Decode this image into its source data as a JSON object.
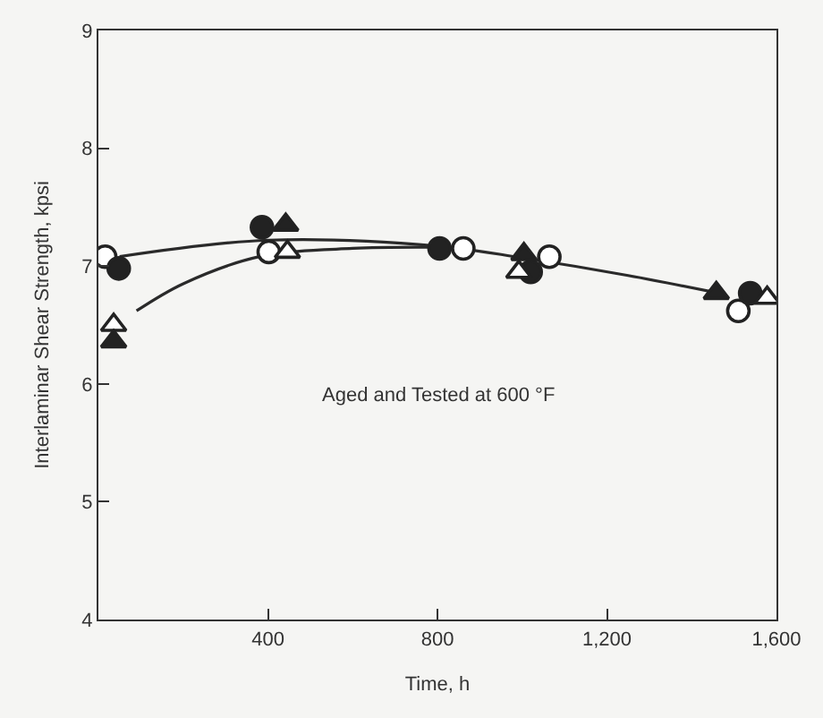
{
  "chart_data": {
    "type": "scatter",
    "xlabel": "Time, h",
    "ylabel": "Interlaminar Shear Strength, kpsi",
    "annotations": [
      "Aged and Tested at 600 °F"
    ],
    "xlim": [
      0,
      1600
    ],
    "xticks": [
      400,
      800,
      {
        "value": 1200,
        "label": "1,200"
      },
      {
        "value": 1600,
        "label": "1,600"
      }
    ],
    "ylim": [
      4,
      9
    ],
    "yticks": [
      4,
      5,
      6,
      7,
      8,
      9
    ],
    "series": [
      {
        "type": "line",
        "color": "#2a2a2a",
        "marker": "none",
        "x": [
          50,
          400,
          800,
          1000,
          1250,
          1450
        ],
        "values": [
          7.08,
          7.22,
          7.17,
          7.07,
          6.92,
          6.78
        ]
      },
      {
        "type": "line",
        "color": "#2a2a2a",
        "marker": "none",
        "x": [
          90,
          200,
          380,
          600,
          780
        ],
        "values": [
          6.62,
          6.85,
          7.08,
          7.15,
          7.16
        ]
      },
      {
        "color": "#ffffff",
        "marker": "circle",
        "x": [
          16,
          402,
          861,
          1064,
          1510
        ],
        "values": [
          7.08,
          7.12,
          7.15,
          7.08,
          6.62
        ]
      },
      {
        "color": "#222222",
        "marker": "circle",
        "x": [
          48,
          386,
          805,
          1020,
          1538
        ],
        "values": [
          6.98,
          7.33,
          7.15,
          6.95,
          6.77
        ]
      },
      {
        "color": "#ffffff",
        "marker": "triangle",
        "x": [
          36,
          446,
          992,
          1578
        ],
        "values": [
          6.5,
          7.12,
          6.95,
          6.73
        ]
      },
      {
        "color": "#222222",
        "marker": "triangle",
        "x": [
          36,
          442,
          1004,
          1458
        ],
        "values": [
          6.36,
          7.35,
          7.1,
          6.77
        ]
      }
    ]
  }
}
